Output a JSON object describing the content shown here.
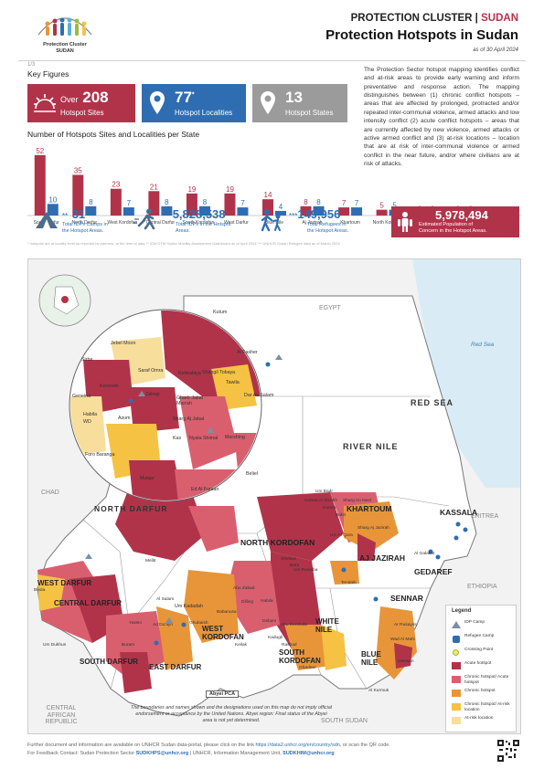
{
  "header": {
    "org": "PROTECTION CLUSTER |",
    "org_accent": "SUDAN",
    "title": "Protection Hotspots in Sudan",
    "as_of": "as of 30 April 2024",
    "logo_line1": "Protection Cluster",
    "logo_line2": "SUDAN"
  },
  "key_figures": {
    "index": "1/3",
    "title": "Key Figures",
    "cards": [
      {
        "prefix": "Over",
        "value": "208",
        "label": "Hotspot Sites",
        "color": "#b1334a",
        "icon": "sunburst-icon"
      },
      {
        "value": "77",
        "sup": "*",
        "label": "Hotspot Localities",
        "color": "#2f6db3",
        "icon": "location-pin-icon"
      },
      {
        "value": "13",
        "label": "Hotspot States",
        "color": "#9b9b9b",
        "icon": "location-pin-icon"
      }
    ]
  },
  "description": "The Protection Sector hotspot mapping identifies conflict and at-risk areas to provide early warning and inform preventative and response action. The mapping distinguishes between (1) chronic conflict hotspots – areas that are affected by prolonged, protracted and/or repeated inter-communal violence, armed attacks and low intensity conflict (2) acute conflict hotspots – areas that are currently affected by new violence, armed attacks or active armed conflict and (3) at-risk locations – location that are at risk of inter-communal violence or armed conflict in the near future, and/or where civilians are at risk of attacks.",
  "chart_data": {
    "type": "bar",
    "title": "Number of Hotspots Sites and Localities per State",
    "categories": [
      "South Darfur",
      "North Darfur",
      "West Kordofan",
      "Central Darfur",
      "South Kordofan",
      "West Darfur",
      "Blue Nile",
      "Aj Jazirah",
      "Khartoum",
      "North Kordofan",
      "White Nile",
      "East Darfur",
      "Gedaref"
    ],
    "series": [
      {
        "values": [
          52,
          35,
          23,
          21,
          19,
          19,
          14,
          8,
          7,
          5,
          2,
          2,
          1
        ],
        "color": "#b1334a"
      },
      {
        "values": [
          10,
          8,
          7,
          8,
          8,
          7,
          4,
          8,
          7,
          5,
          2,
          2,
          1
        ],
        "color": "#2f6db3"
      }
    ],
    "ylim": [
      0,
      55
    ]
  },
  "stats": [
    {
      "prefix": "**",
      "value": "31",
      "label1": "Total IDPs Camps in",
      "label2": "the Hotspot Areas.",
      "icon": "tent-icon"
    },
    {
      "prefix": "**",
      "value": "5,828,538",
      "label1": "Total IDPs in the Hotspot",
      "label2": "Areas.",
      "icon": "running-person-icon"
    },
    {
      "prefix": "***",
      "value": "149,956",
      "label1": "Total Refugees in",
      "label2": "the Hotspot Areas.",
      "icon": "refugee-family-icon"
    },
    {
      "value": "5,978,494",
      "label1": "Estimated Population of",
      "label2": "Concern in the Hotspot Areas.",
      "icon": "people-icon"
    }
  ],
  "footnotes": "* hotspots are at locality level as reported by partners, at the time of data    ** IOM DTM Sudan Mobility Assessment Dashboard as of April 2024    *** UNHCR Sudan Refugee data as of March 2024",
  "map": {
    "countries": [
      "EGYPT",
      "CHAD",
      "ERITREA",
      "ETHIOPIA",
      "SOUTH SUDAN",
      "CENTRAL AFRICAN REPUBLIC"
    ],
    "sea": "Red Sea",
    "states": [
      "RED SEA",
      "RIVER NILE",
      "NORTH DARFUR",
      "WEST DARFUR",
      "CENTRAL DARFUR",
      "SOUTH DARFUR",
      "EAST DARFUR",
      "NORTH KORDOFAN",
      "KHARTOUM",
      "AJ JAZIRAH",
      "KASSALA",
      "GEDAREF",
      "SENNAR",
      "WHITE NILE",
      "WEST KORDOFAN",
      "SOUTH KORDOFAN",
      "BLUE NILE"
    ],
    "inset_localities": [
      "Kutum",
      "Al Fasher",
      "Jebel Moon",
      "Sirba",
      "Saraf Omra",
      "Kebkabiya",
      "Kereneik",
      "Geneina",
      "Zalingi",
      "Azum",
      "Habila",
      "WD",
      "Foro Baranga",
      "Tawila",
      "Shangil Tobaya",
      "Dar As Salam",
      "Gharb Jabal Marrah",
      "Sharg Aj Jabal",
      "Kas",
      "Nyala Shimal",
      "Marshing",
      "Mukjar",
      "Ed Al Fursan",
      "Beliel",
      "Um Kadadah"
    ],
    "localities": [
      "Um Badr",
      "Gebrat Al Sheikh",
      "Bara",
      "Um Rawaba",
      "Sheikan",
      "Abyei PCA",
      "Babanusa",
      "Keilak",
      "Ghubaish",
      "Al Salam",
      "Abu Zabad",
      "Dilling",
      "Habila",
      "Delami",
      "Abu Kershola",
      "Rashad",
      "Ghadeer",
      "Tendalti",
      "Al Kurmuk",
      "Geissan",
      "Ar Rusayris",
      "Wad Al Mahi",
      "Yassin",
      "Ad Du'ayn",
      "Buram",
      "Um Dukhun",
      "Beida",
      "Mellit",
      "Kadugli",
      "Sharg An Neel",
      "Bahri",
      "Karrari",
      "Sharg Aj Jazirah",
      "Um Al Qura",
      "Al Galabat"
    ],
    "disclaimer": "The boundaries and names shown and the designations used on this map do not imply official endorsement or acceptance by the United Nations. Abyei region: Final status of the Abyei area is not yet determined.",
    "legend": {
      "title": "Legend",
      "items": [
        {
          "label": "IDP Camp",
          "color": "#7a8fa6",
          "icon": "tent-icon"
        },
        {
          "label": "Refugee Camp",
          "color": "#2f6db3",
          "icon": "refugee-camp-icon"
        },
        {
          "label": "Crossing Point",
          "color": "#9bbb3a",
          "icon": "crossing-point-icon"
        },
        {
          "label": "Acute hotspot",
          "color": "#b1334a"
        },
        {
          "label": "Chronic hotspot/ Acute hotspot",
          "color": "#d95f6f"
        },
        {
          "label": "Chronic hotspot",
          "color": "#e8953a"
        },
        {
          "label": "Chronic hotspot/ At-risk location",
          "color": "#f5c243"
        },
        {
          "label": "At-risk location",
          "color": "#f7de9b"
        }
      ]
    }
  },
  "footer": {
    "line1_pre": "Further document and information are available on UNHCR Sudan data-portal, please click on the link",
    "line1_link": "https://data2.unhcr.org/en/country/sdn",
    "line1_post": ", or scan the QR code.",
    "line2_pre": "For Feedback Contact: Sudan Protection Sector",
    "line2_email1": "SUDKHPS@unhcr.org",
    "line2_mid": "| UNHCR, Information Management Unit,",
    "line2_email2": "SUDKHIM@unhcr.org"
  }
}
